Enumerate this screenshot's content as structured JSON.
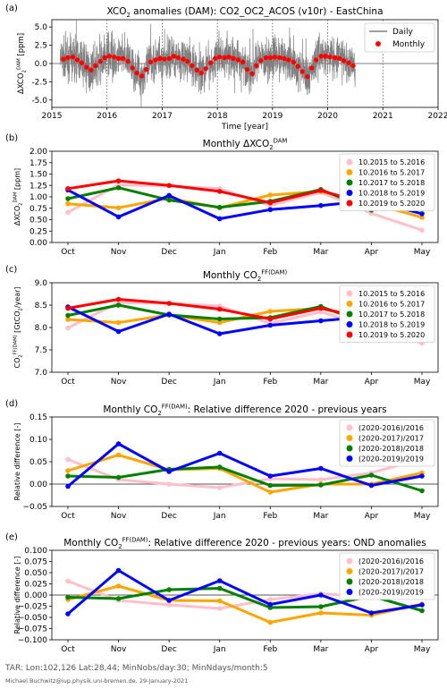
{
  "footer": {
    "line1": "TAR: Lon:102,126 Lat:28,44; MinNobs/day:30; MinNdays/month:5",
    "line2": "Michael.Buchwitz@iup.physik.uni-bremen.de, 29-January-2021"
  },
  "chart_data": [
    {
      "id": "a",
      "panel_label": "(a)",
      "type": "line",
      "title_parts": [
        [
          "XCO",
          ""
        ],
        [
          "2",
          "sub"
        ],
        [
          " anomalies (DAM): CO2_OC2_ACOS (v10r) - EastChina",
          ""
        ]
      ],
      "xlabel": "Time [year]",
      "ylabel_parts": [
        [
          "ΔXCO",
          ""
        ],
        [
          "2",
          "sub"
        ],
        [
          "DAM",
          "sup"
        ],
        [
          " [ppm]",
          ""
        ]
      ],
      "xlim": [
        2015,
        2022
      ],
      "ylim": [
        -6,
        6
      ],
      "xticks": [
        2015,
        2016,
        2017,
        2018,
        2019,
        2020,
        2021,
        2022
      ],
      "yticks": [
        -5.0,
        -2.5,
        0.0,
        2.5,
        5.0
      ],
      "ytick_labels": [
        "-5.0",
        "-2.5",
        "0.0",
        "2.5",
        "5.0"
      ],
      "dotted_vlines": [
        2016,
        2017,
        2018,
        2019,
        2020,
        2021
      ],
      "legend": {
        "position": "top-right",
        "daily_label": "Daily",
        "monthly_label": "Monthly"
      },
      "colors": {
        "daily": "#808080",
        "monthly": "#ff0000"
      },
      "monthly_x": [
        2015.21,
        2015.29,
        2015.38,
        2015.46,
        2015.54,
        2015.63,
        2015.71,
        2015.79,
        2015.88,
        2015.96,
        2016.04,
        2016.13,
        2016.21,
        2016.29,
        2016.38,
        2016.46,
        2016.54,
        2016.63,
        2016.71,
        2016.79,
        2016.88,
        2016.96,
        2017.04,
        2017.13,
        2017.21,
        2017.29,
        2017.38,
        2017.46,
        2017.54,
        2017.63,
        2017.71,
        2017.79,
        2017.88,
        2017.96,
        2018.04,
        2018.13,
        2018.21,
        2018.29,
        2018.38,
        2018.46,
        2018.54,
        2018.63,
        2018.71,
        2018.79,
        2018.88,
        2018.96,
        2019.04,
        2019.13,
        2019.21,
        2019.29,
        2019.38,
        2019.46,
        2019.54,
        2019.63,
        2019.71,
        2019.79,
        2019.88,
        2019.96,
        2020.04,
        2020.13,
        2020.21,
        2020.29,
        2020.38,
        2020.46
      ],
      "monthly_y": [
        0.6,
        0.8,
        0.9,
        0.5,
        0.1,
        -0.5,
        -0.9,
        -0.3,
        0.3,
        0.8,
        1.0,
        0.9,
        0.7,
        0.7,
        0.3,
        -0.6,
        -1.3,
        -1.7,
        -0.8,
        0.2,
        0.5,
        0.7,
        0.6,
        0.7,
        1.0,
        0.8,
        0.6,
        0.3,
        -0.3,
        -0.9,
        -1.3,
        -0.7,
        0.1,
        0.7,
        0.9,
        0.8,
        0.9,
        0.7,
        0.5,
        0.2,
        -0.8,
        -1.4,
        -0.3,
        0.4,
        0.8,
        0.8,
        0.9,
        0.8,
        0.7,
        0.5,
        0.2,
        -0.4,
        -1.1,
        -1.8,
        -0.6,
        0.5,
        1.0,
        1.0,
        0.9,
        0.8,
        0.7,
        0.4,
        0.1,
        -0.3
      ]
    },
    {
      "id": "b",
      "panel_label": "(b)",
      "type": "line",
      "title_parts": [
        [
          "Monthly ΔXCO",
          ""
        ],
        [
          "2",
          "sub"
        ],
        [
          "DAM",
          "sup"
        ]
      ],
      "ylabel_parts": [
        [
          "ΔXCO",
          ""
        ],
        [
          "2",
          "sub"
        ],
        [
          "DAM",
          "sup"
        ],
        [
          " [ppm]",
          ""
        ]
      ],
      "categories": [
        "Oct",
        "Nov",
        "Dec",
        "Jan",
        "Feb",
        "Mar",
        "Apr",
        "May"
      ],
      "ylim": [
        0.0,
        2.0
      ],
      "yticks": [
        0.0,
        0.25,
        0.5,
        0.75,
        1.0,
        1.25,
        1.5,
        1.75,
        2.0
      ],
      "ytick_labels": [
        "0.00",
        "0.25",
        "0.50",
        "0.75",
        "1.00",
        "1.25",
        "1.50",
        "1.75",
        "2.00"
      ],
      "legend": {
        "position": "top-right"
      },
      "series": [
        {
          "name": "10.2015 to 5.2016",
          "color": "#ffc0cb",
          "values": [
            0.66,
            1.26,
            1.24,
            1.18,
            0.81,
            1.1,
            0.64,
            0.27
          ]
        },
        {
          "name": "10.2016 to 5.2017",
          "color": "#ffa500",
          "values": [
            0.85,
            0.76,
            0.97,
            0.76,
            1.04,
            1.12,
            0.86,
            0.55
          ]
        },
        {
          "name": "10.2017 to 5.2018",
          "color": "#008000",
          "values": [
            0.96,
            1.2,
            0.93,
            0.77,
            0.9,
            1.16,
            0.71,
            0.9
          ]
        },
        {
          "name": "10.2018 to 5.2019",
          "color": "#0000ff",
          "values": [
            1.15,
            0.56,
            1.03,
            0.52,
            0.72,
            0.81,
            0.92,
            0.63
          ]
        },
        {
          "name": "10.2019 to 5.2020",
          "color": "#ff0000",
          "values": [
            1.18,
            1.35,
            1.25,
            1.12,
            0.87,
            1.14,
            0.82,
            0.77
          ]
        }
      ]
    },
    {
      "id": "c",
      "panel_label": "(c)",
      "type": "line",
      "title_parts": [
        [
          "Monthly CO",
          ""
        ],
        [
          "2",
          "sub"
        ],
        [
          "FF(DAM)",
          "sup"
        ]
      ],
      "ylabel_parts": [
        [
          "CO",
          ""
        ],
        [
          "2",
          "sub"
        ],
        [
          "FF(DAM)",
          "sup"
        ],
        [
          " [GtCO",
          ""
        ],
        [
          "2",
          "sub"
        ],
        [
          "/year]",
          ""
        ]
      ],
      "categories": [
        "Oct",
        "Nov",
        "Dec",
        "Jan",
        "Feb",
        "Mar",
        "Apr",
        "May"
      ],
      "ylim": [
        7.0,
        9.0
      ],
      "yticks": [
        7.0,
        7.5,
        8.0,
        8.5,
        9.0
      ],
      "ytick_labels": [
        "7.0",
        "7.5",
        "8.0",
        "8.5",
        "9.0"
      ],
      "legend": {
        "position": "top-right"
      },
      "series": [
        {
          "name": "10.2015 to 5.2016",
          "color": "#ffc0cb",
          "values": [
            7.99,
            8.56,
            8.54,
            8.48,
            8.09,
            8.35,
            8.0,
            7.65
          ]
        },
        {
          "name": "10.2016 to 5.2017",
          "color": "#ffa500",
          "values": [
            8.18,
            8.11,
            8.28,
            8.11,
            8.36,
            8.43,
            8.2,
            7.89
          ]
        },
        {
          "name": "10.2017 to 5.2018",
          "color": "#008000",
          "values": [
            8.27,
            8.5,
            8.28,
            8.19,
            8.22,
            8.47,
            8.05,
            8.21
          ]
        },
        {
          "name": "10.2018 to 5.2019",
          "color": "#0000ff",
          "values": [
            8.46,
            7.91,
            8.3,
            7.86,
            8.05,
            8.15,
            8.25,
            7.95
          ]
        },
        {
          "name": "10.2019 to 5.2020",
          "color": "#ff0000",
          "values": [
            8.43,
            8.63,
            8.54,
            8.41,
            8.19,
            8.43,
            8.17,
            8.04
          ]
        }
      ]
    },
    {
      "id": "d",
      "panel_label": "(d)",
      "type": "line",
      "title_parts": [
        [
          "Monthly CO",
          ""
        ],
        [
          "2",
          "sub"
        ],
        [
          "FF(DAM)",
          "sup"
        ],
        [
          ": Relative difference 2020 - previous years",
          ""
        ]
      ],
      "ylabel_parts": [
        [
          "Relative difference [-]",
          ""
        ]
      ],
      "categories": [
        "Oct",
        "Nov",
        "Dec",
        "Jan",
        "Feb",
        "Mar",
        "Apr",
        "May"
      ],
      "ylim": [
        -0.05,
        0.15
      ],
      "yticks": [
        -0.05,
        0.0,
        0.05,
        0.1,
        0.15
      ],
      "ytick_labels": [
        "−0.05",
        "0.00",
        "0.05",
        "0.10",
        "0.15"
      ],
      "zero_line": true,
      "legend": {
        "position": "top-right"
      },
      "series": [
        {
          "name": "(2020-2016)/2016",
          "color": "#ffc0cb",
          "values": [
            0.055,
            0.01,
            0.0,
            -0.008,
            0.012,
            0.01,
            0.025,
            0.057
          ]
        },
        {
          "name": "(2020-2017)/2017",
          "color": "#ffa500",
          "values": [
            0.03,
            0.065,
            0.032,
            0.035,
            -0.018,
            0.0,
            0.0,
            0.025
          ]
        },
        {
          "name": "(2020-2018)/2018",
          "color": "#008000",
          "values": [
            0.018,
            0.015,
            0.033,
            0.038,
            -0.003,
            -0.002,
            0.02,
            -0.015
          ]
        },
        {
          "name": "(2020-2019)/2019",
          "color": "#0000ff",
          "values": [
            -0.005,
            0.09,
            0.028,
            0.069,
            0.018,
            0.035,
            -0.003,
            0.018
          ]
        }
      ]
    },
    {
      "id": "e",
      "panel_label": "(e)",
      "type": "line",
      "title_parts": [
        [
          "Monthly CO",
          ""
        ],
        [
          "2",
          "sub"
        ],
        [
          "FF(DAM)",
          "sup"
        ],
        [
          ": Relative difference 2020 - previous years: OND anomalies",
          ""
        ]
      ],
      "ylabel_parts": [
        [
          "Relative difference [-]",
          ""
        ]
      ],
      "categories": [
        "Oct",
        "Nov",
        "Dec",
        "Jan",
        "Feb",
        "Mar",
        "Apr",
        "May"
      ],
      "ylim": [
        -0.1,
        0.1
      ],
      "yticks": [
        -0.1,
        -0.075,
        -0.05,
        -0.025,
        0.0,
        0.025,
        0.05,
        0.075,
        0.1
      ],
      "ytick_labels": [
        "−0.100",
        "−0.075",
        "−0.050",
        "−0.025",
        "0.000",
        "0.025",
        "0.050",
        "0.075",
        "0.100"
      ],
      "zero_line": true,
      "legend": {
        "position": "top-right"
      },
      "series": [
        {
          "name": "(2020-2016)/2016",
          "color": "#ffc0cb",
          "values": [
            0.031,
            -0.012,
            -0.022,
            -0.03,
            -0.01,
            0.003,
            -0.005,
            0.035
          ]
        },
        {
          "name": "(2020-2017)/2017",
          "color": "#ffa500",
          "values": [
            -0.01,
            0.02,
            -0.012,
            -0.013,
            -0.061,
            -0.04,
            -0.045,
            -0.02
          ]
        },
        {
          "name": "(2020-2018)/2018",
          "color": "#008000",
          "values": [
            -0.005,
            -0.008,
            0.012,
            0.015,
            -0.028,
            -0.026,
            -0.002,
            -0.035
          ]
        },
        {
          "name": "(2020-2019)/2019",
          "color": "#0000ff",
          "values": [
            -0.042,
            0.055,
            -0.012,
            0.032,
            -0.021,
            0.0,
            -0.04,
            -0.022
          ]
        }
      ]
    }
  ]
}
